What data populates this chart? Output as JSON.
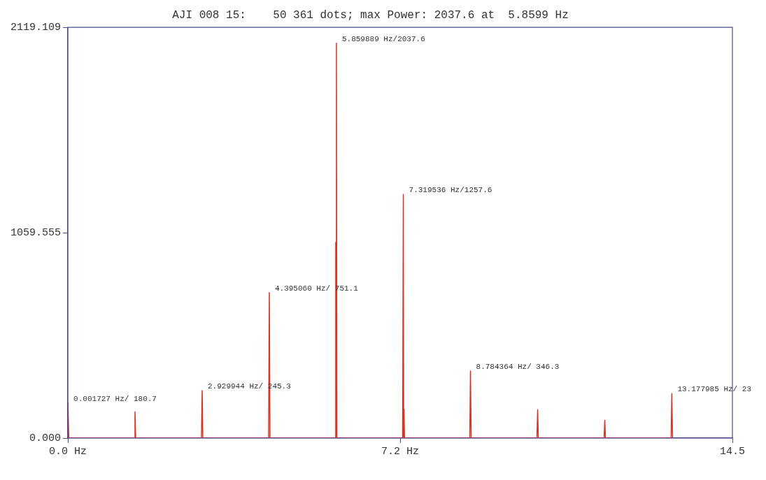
{
  "chart_data": {
    "type": "line",
    "title": "AJI 008 15:    50 361 dots; max Power: 2037.6 at  5.8599 Hz",
    "xlim": [
      0,
      14.5
    ],
    "xticks": [
      {
        "value": 0,
        "label": "0.0 Hz"
      },
      {
        "value": 7.25,
        "label": "7.2 Hz"
      },
      {
        "value": 14.5,
        "label": "14.5"
      }
    ],
    "ylim": [
      0,
      2119.109
    ],
    "yticks": [
      {
        "value": 0,
        "label": "0.000"
      },
      {
        "value": 1059.555,
        "label": "1059.555"
      },
      {
        "value": 2119.109,
        "label": "2119.109"
      }
    ],
    "grid": false,
    "legend": false,
    "marker": "none",
    "line_style": "solid",
    "series": [
      {
        "color": "#e03020",
        "x": [
          0,
          0.001727,
          0.02,
          1.45,
          1.465,
          1.48,
          2.915,
          2.929944,
          2.945,
          4.38,
          4.39506,
          4.41,
          5.835,
          5.845,
          5.852,
          5.859889,
          5.87,
          7.305,
          7.319536,
          7.327,
          7.335,
          7.345,
          8.77,
          8.784364,
          8.8,
          10.235,
          10.25,
          10.265,
          11.7,
          11.715,
          11.73,
          13.163,
          13.177985,
          13.193
        ],
        "values": [
          0,
          180.7,
          0,
          0,
          135,
          0,
          0,
          245.3,
          0,
          0,
          751.1,
          0,
          0,
          1010,
          0,
          2037.6,
          0,
          0,
          1257.6,
          0,
          150,
          0,
          0,
          346.3,
          0,
          0,
          147,
          0,
          0,
          92,
          0,
          0,
          230,
          0
        ]
      }
    ],
    "annotations": [
      {
        "text": "0.001727 Hz/ 180.7",
        "x": 0.001727,
        "y": 180.7
      },
      {
        "text": "2.929944 Hz/ 245.3",
        "x": 2.929944,
        "y": 245.3
      },
      {
        "text": "4.395060 Hz/ 751.1",
        "x": 4.39506,
        "y": 751.1
      },
      {
        "text": "5.859889 Hz/2037.6",
        "x": 5.859889,
        "y": 2037.6
      },
      {
        "text": "7.319536 Hz/1257.6",
        "x": 7.319536,
        "y": 1257.6
      },
      {
        "text": "8.784364 Hz/ 346.3",
        "x": 8.784364,
        "y": 346.3
      },
      {
        "text": "13.177985 Hz/ 23",
        "x": 13.177985,
        "y": 230
      }
    ]
  }
}
